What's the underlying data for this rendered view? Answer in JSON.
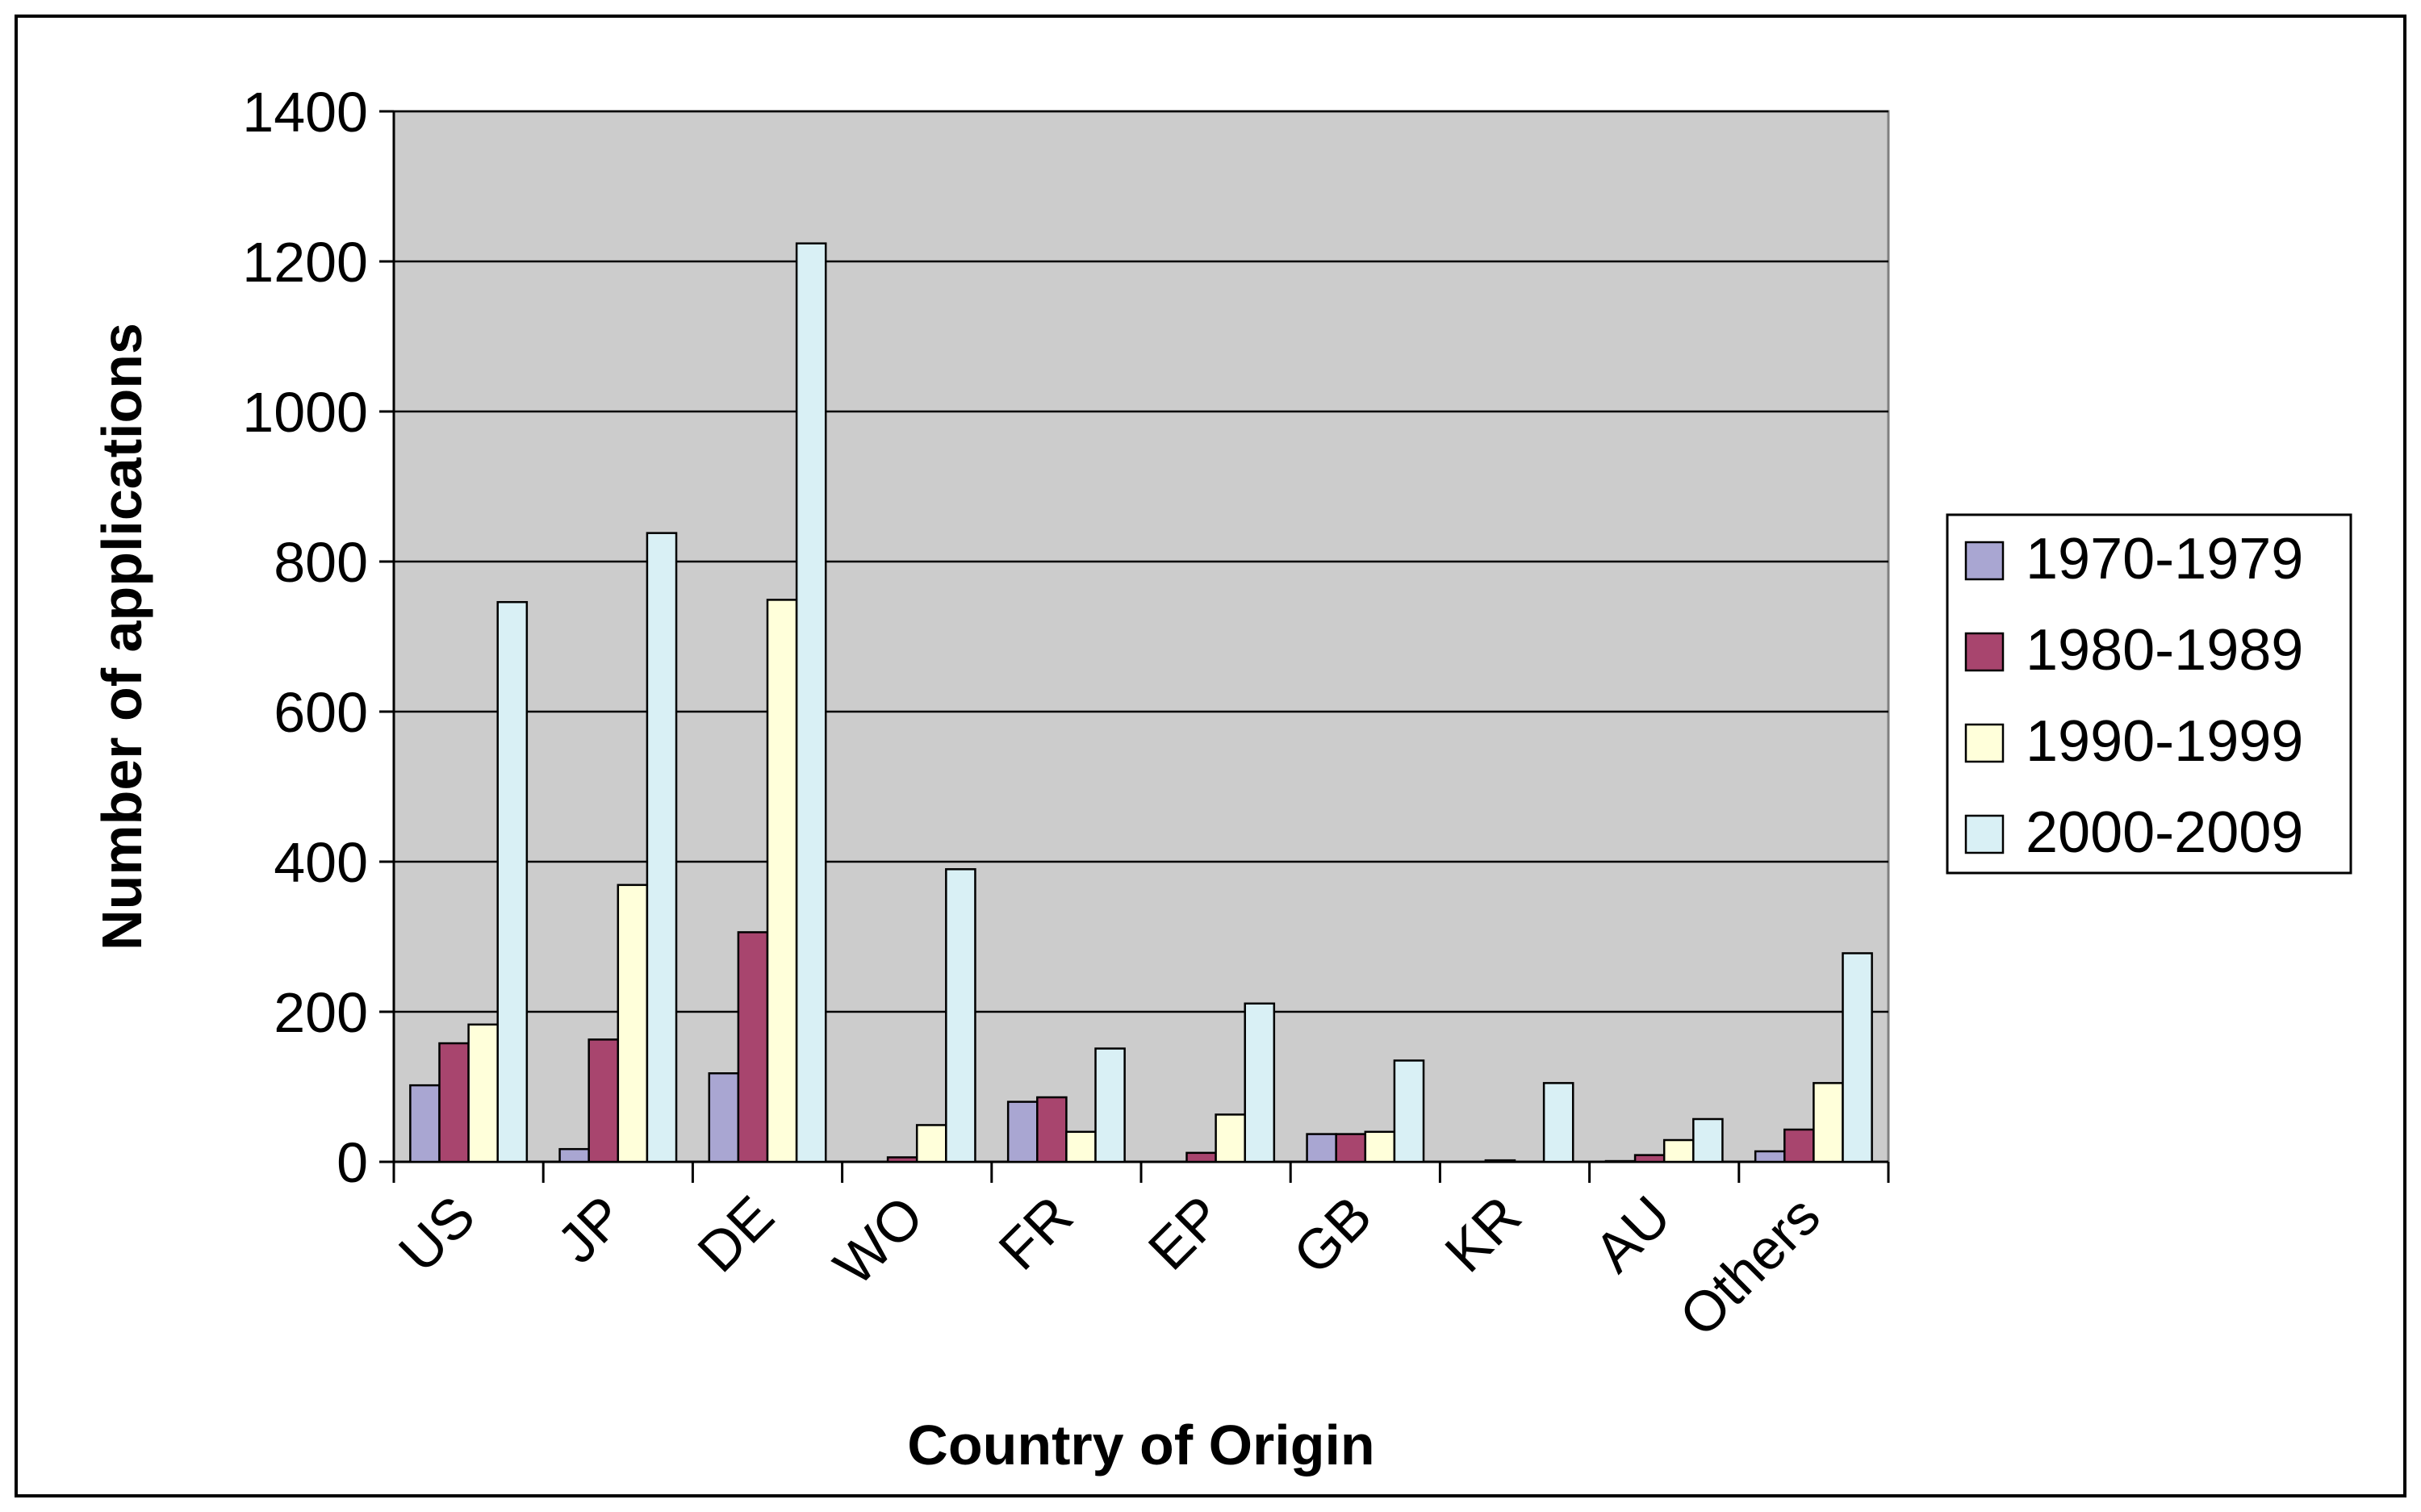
{
  "chart_data": {
    "type": "bar",
    "title": "",
    "xlabel": "Country of Origin",
    "ylabel": "Number of applications",
    "ylim": [
      0,
      1400
    ],
    "yticks": [
      0,
      200,
      400,
      600,
      800,
      1000,
      1200,
      1400
    ],
    "grid": true,
    "legend_position": "right",
    "categories": [
      "US",
      "JP",
      "DE",
      "WO",
      "FR",
      "EP",
      "GB",
      "KR",
      "AU",
      "Others"
    ],
    "series": [
      {
        "name": "1970-1979",
        "color": "#a9a6d2",
        "values": [
          102,
          17,
          118,
          0,
          80,
          0,
          37,
          0,
          1,
          14
        ]
      },
      {
        "name": "1980-1989",
        "color": "#a8456e",
        "values": [
          158,
          163,
          306,
          6,
          86,
          12,
          37,
          2,
          9,
          43
        ]
      },
      {
        "name": "1990-1999",
        "color": "#ffffda",
        "values": [
          183,
          369,
          749,
          49,
          40,
          63,
          40,
          0,
          29,
          105
        ]
      },
      {
        "name": "2000-2009",
        "color": "#d9f0f5",
        "values": [
          746,
          838,
          1224,
          390,
          151,
          211,
          135,
          105,
          57,
          278
        ]
      }
    ],
    "plot_background": "#cccccc",
    "gridline_color": "#000000"
  }
}
